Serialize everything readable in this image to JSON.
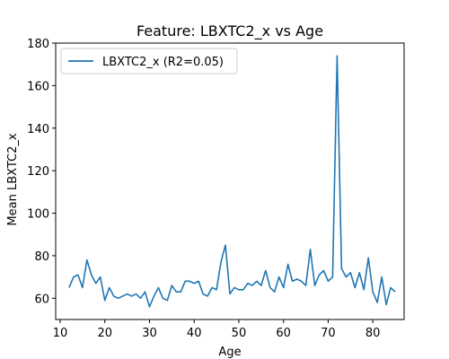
{
  "chart_data": {
    "type": "line",
    "title": "Feature: LBXTC2_x vs Age",
    "xlabel": "Age",
    "ylabel": "Mean LBXTC2_x",
    "xlim": [
      9,
      87
    ],
    "ylim": [
      50,
      180
    ],
    "xticks": [
      10,
      20,
      30,
      40,
      50,
      60,
      70,
      80
    ],
    "yticks": [
      60,
      80,
      100,
      120,
      140,
      160,
      180
    ],
    "grid": false,
    "legend_position": "top-left",
    "series": [
      {
        "name": "LBXTC2_x (R2=0.05)",
        "color": "#1f77b4",
        "x": [
          12,
          13,
          14,
          15,
          16,
          17,
          18,
          19,
          20,
          21,
          22,
          23,
          24,
          25,
          26,
          27,
          28,
          29,
          30,
          31,
          32,
          33,
          34,
          35,
          36,
          37,
          38,
          39,
          40,
          41,
          42,
          43,
          44,
          45,
          46,
          47,
          48,
          49,
          50,
          51,
          52,
          53,
          54,
          55,
          56,
          57,
          58,
          59,
          60,
          61,
          62,
          63,
          64,
          65,
          66,
          67,
          68,
          69,
          70,
          71,
          72,
          73,
          74,
          75,
          76,
          77,
          78,
          79,
          80,
          81,
          82,
          83,
          84,
          85
        ],
        "y": [
          65,
          70,
          71,
          65,
          78,
          71,
          67,
          70,
          59,
          65,
          61,
          60,
          61,
          62,
          61,
          62,
          60,
          63,
          56,
          61,
          65,
          60,
          59,
          66,
          63,
          63,
          68,
          68,
          67,
          68,
          62,
          61,
          65,
          64,
          77,
          85,
          62,
          65,
          64,
          64,
          67,
          66,
          68,
          66,
          73,
          65,
          63,
          70,
          65,
          76,
          68,
          69,
          68,
          66,
          83,
          66,
          71,
          73,
          68,
          70,
          174,
          74,
          70,
          72,
          65,
          72,
          64,
          79,
          63,
          58,
          70,
          57,
          65,
          63
        ]
      }
    ]
  }
}
